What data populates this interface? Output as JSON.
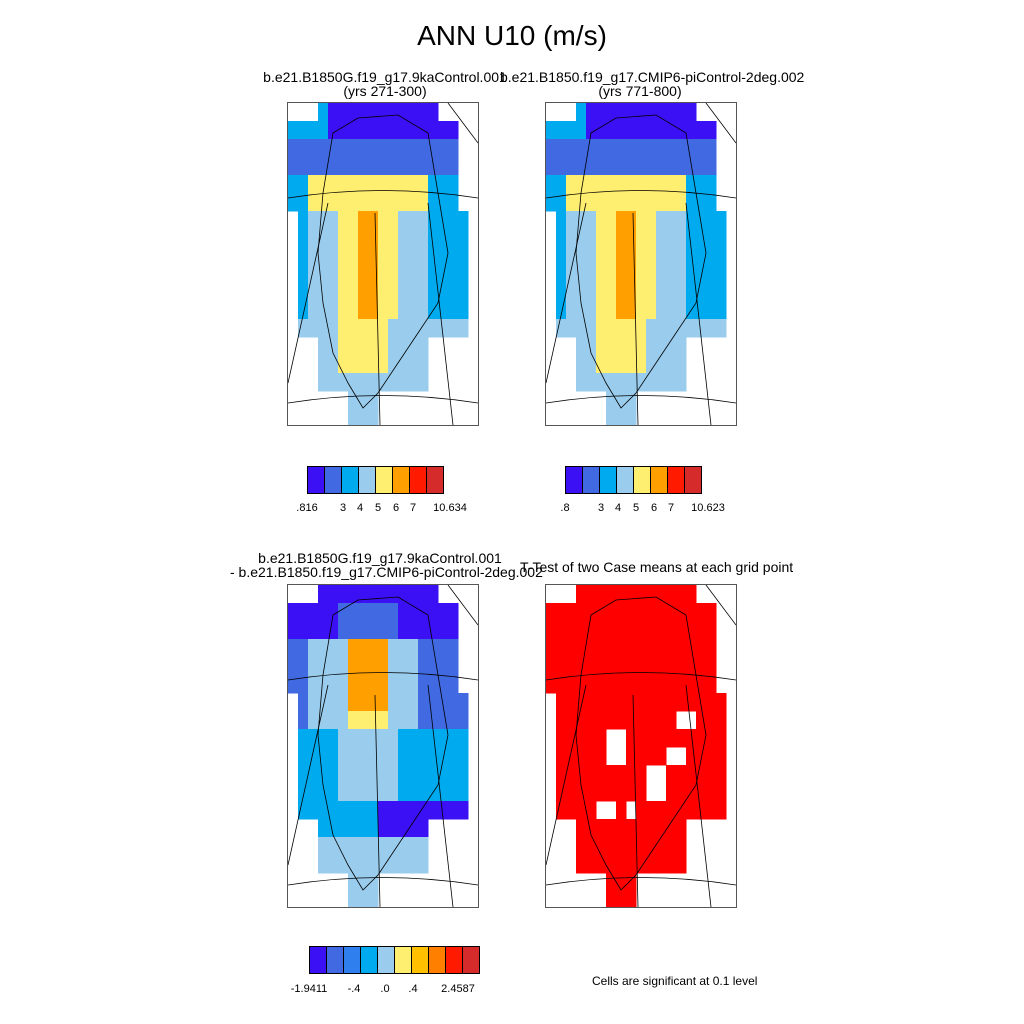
{
  "title": "ANN U10 (m/s)",
  "panels": {
    "case1": {
      "line1": "b.e21.B1850G.f19_g17.9kaControl.001",
      "line2": "(yrs 271-300)"
    },
    "case2": {
      "line1": "b.e21.B1850.f19_g17.CMIP6-piControl-2deg.002",
      "line2": "(yrs 771-800)"
    },
    "diff": {
      "line1": "b.e21.B1850G.f19_g17.9kaControl.001",
      "line2": "- b.e21.B1850.f19_g17.CMIP6-piControl-2deg.002"
    },
    "ttest": {
      "line1": "T-Test of two Case means at each grid point"
    }
  },
  "colorbars": {
    "case1": {
      "colors": [
        "#3b10f5",
        "#4169e1",
        "#00aaee",
        "#99cced",
        "#ffef70",
        "#ffa000",
        "#ff1a00",
        "#d62b2b"
      ],
      "ticks": [
        ".816",
        "3",
        "4",
        "5",
        "6",
        "7",
        "10.634"
      ]
    },
    "case2": {
      "colors": [
        "#3b10f5",
        "#4169e1",
        "#00aaee",
        "#99cced",
        "#ffef70",
        "#ffa000",
        "#ff1a00",
        "#d62b2b"
      ],
      "ticks": [
        ".8",
        "3",
        "4",
        "5",
        "6",
        "7",
        "10.623"
      ]
    },
    "diff": {
      "colors": [
        "#3b10f5",
        "#4169e1",
        "#2f7fee",
        "#00aaee",
        "#99cced",
        "#ffef70",
        "#ffc000",
        "#ff8000",
        "#ff1a00",
        "#d62b2b"
      ],
      "ticks": [
        "-1.9411",
        "-.4",
        ".0",
        ".4",
        "2.4587"
      ]
    }
  },
  "significance_note": "Cells are significant at 0.1 level"
}
